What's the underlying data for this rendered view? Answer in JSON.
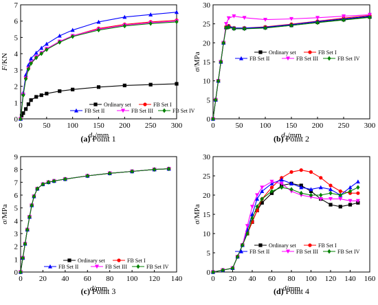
{
  "chart_data": [
    {
      "type": "line",
      "caption_letter": "(a)",
      "caption_text": "Point 1",
      "ylabel_main": "F",
      "ylabel_unit": "/KN",
      "xlabel_main": "d",
      "xlabel_sub": "2",
      "xlabel_unit": "/mm",
      "xlim": [
        0,
        300
      ],
      "ylim": [
        0,
        7
      ],
      "xticks": [
        "0",
        "50",
        "100",
        "150",
        "200",
        "250",
        "300"
      ],
      "yticks": [
        "0",
        "1",
        "2",
        "3",
        "4",
        "5",
        "6",
        "7"
      ],
      "legend_position": "top-left",
      "series": [
        {
          "name": "Ordinary set",
          "color": "#000000",
          "marker": "square",
          "x": [
            0,
            2,
            5,
            10,
            15,
            20,
            30,
            40,
            50,
            75,
            100,
            150,
            200,
            250,
            300
          ],
          "y": [
            0,
            0.2,
            0.35,
            0.6,
            0.9,
            1.15,
            1.35,
            1.45,
            1.55,
            1.7,
            1.8,
            1.95,
            2.05,
            2.1,
            2.15
          ]
        },
        {
          "name": "FB Set I",
          "color": "#ff0000",
          "marker": "circle",
          "x": [
            0,
            5,
            10,
            15,
            20,
            30,
            40,
            50,
            75,
            100,
            150,
            200,
            250,
            300
          ],
          "y": [
            0,
            1.5,
            2.5,
            3.1,
            3.45,
            3.8,
            4.05,
            4.3,
            4.75,
            5.1,
            5.55,
            5.8,
            5.95,
            6.05
          ]
        },
        {
          "name": "FB Set II",
          "color": "#0000ff",
          "marker": "triangle",
          "x": [
            0,
            5,
            10,
            15,
            20,
            30,
            40,
            50,
            75,
            100,
            150,
            200,
            250,
            300
          ],
          "y": [
            0,
            1.6,
            2.7,
            3.3,
            3.7,
            4.05,
            4.35,
            4.6,
            5.1,
            5.45,
            5.95,
            6.25,
            6.4,
            6.55
          ]
        },
        {
          "name": "FB Set III",
          "color": "#ff00ff",
          "marker": "triangle-down",
          "x": [
            0,
            5,
            10,
            15,
            20,
            30,
            40,
            50,
            75,
            100,
            150,
            200,
            250,
            300
          ],
          "y": [
            0,
            1.5,
            2.5,
            3.1,
            3.45,
            3.8,
            4.05,
            4.3,
            4.75,
            5.1,
            5.5,
            5.75,
            5.9,
            6.0
          ]
        },
        {
          "name": "FB Set IV",
          "color": "#008000",
          "marker": "diamond",
          "x": [
            0,
            5,
            10,
            15,
            20,
            30,
            40,
            50,
            75,
            100,
            150,
            200,
            250,
            300
          ],
          "y": [
            0,
            1.45,
            2.45,
            3.05,
            3.4,
            3.75,
            4.0,
            4.25,
            4.7,
            5.05,
            5.45,
            5.7,
            5.85,
            5.95
          ]
        }
      ]
    },
    {
      "type": "line",
      "caption_letter": "(b)",
      "caption_text": "Point 2",
      "ylabel_main": "σ",
      "ylabel_unit": "/MPa",
      "xlabel_main": "d",
      "xlabel_sub": "2",
      "xlabel_unit": "/mm",
      "xlim": [
        0,
        300
      ],
      "ylim": [
        0,
        30
      ],
      "xticks": [
        "0",
        "50",
        "100",
        "150",
        "200",
        "250",
        "300"
      ],
      "yticks": [
        "0",
        "5",
        "10",
        "15",
        "20",
        "25",
        "30"
      ],
      "legend_position": "center",
      "series": [
        {
          "name": "Ordinary set",
          "color": "#000000",
          "marker": "square",
          "x": [
            0,
            5,
            10,
            15,
            20,
            25,
            30,
            40,
            60,
            100,
            150,
            200,
            250,
            300
          ],
          "y": [
            0,
            5,
            10,
            15,
            20,
            24,
            24.2,
            23.8,
            23.8,
            24.0,
            24.6,
            25.4,
            26.1,
            26.8
          ]
        },
        {
          "name": "FB Set I",
          "color": "#ff0000",
          "marker": "circle",
          "x": [
            0,
            5,
            10,
            15,
            20,
            25,
            30,
            40,
            60,
            100,
            150,
            200,
            250,
            300
          ],
          "y": [
            0,
            5,
            10,
            15,
            20,
            24.2,
            24.5,
            23.9,
            23.9,
            24.2,
            24.9,
            25.7,
            26.5,
            27.2
          ]
        },
        {
          "name": "FB Set II",
          "color": "#0000ff",
          "marker": "triangle",
          "x": [
            0,
            5,
            10,
            15,
            20,
            25,
            30,
            40,
            60,
            100,
            150,
            200,
            250,
            300
          ],
          "y": [
            0,
            5,
            10,
            15,
            20,
            24.2,
            24.4,
            23.9,
            23.9,
            24.1,
            24.8,
            25.6,
            26.3,
            27.0
          ]
        },
        {
          "name": "FB Set III",
          "color": "#ff00ff",
          "marker": "triangle-down",
          "x": [
            0,
            5,
            10,
            15,
            20,
            25,
            30,
            40,
            60,
            100,
            150,
            200,
            250,
            300
          ],
          "y": [
            0,
            5,
            10,
            15,
            20,
            25,
            26.5,
            27.0,
            26.6,
            26.1,
            26.3,
            26.6,
            27.0,
            27.4
          ]
        },
        {
          "name": "FB Set IV",
          "color": "#008000",
          "marker": "diamond",
          "x": [
            0,
            5,
            10,
            15,
            20,
            25,
            30,
            40,
            60,
            100,
            150,
            200,
            250,
            300
          ],
          "y": [
            0,
            5,
            10,
            15,
            20,
            24.0,
            24.1,
            23.7,
            23.7,
            23.9,
            24.6,
            25.3,
            26.0,
            26.7
          ]
        }
      ]
    },
    {
      "type": "line",
      "caption_letter": "(c)",
      "caption_text": "Point 3",
      "ylabel_main": "σ",
      "ylabel_unit": "/MPa",
      "xlabel_main": "d",
      "xlabel_sub": "",
      "xlabel_unit": "/mm",
      "xlim": [
        0,
        140
      ],
      "ylim": [
        0,
        9
      ],
      "xticks": [
        "0",
        "20",
        "40",
        "60",
        "80",
        "100",
        "120",
        "140"
      ],
      "yticks": [
        "0",
        "1",
        "2",
        "3",
        "4",
        "5",
        "6",
        "7",
        "8",
        "9"
      ],
      "legend_position": "lower-center",
      "series": [
        {
          "name": "Ordinary set",
          "color": "#000000",
          "marker": "square",
          "x": [
            0,
            2,
            4,
            6,
            8,
            10,
            12,
            15,
            20,
            25,
            30,
            40,
            60,
            80,
            100,
            120,
            133
          ],
          "y": [
            0,
            1.1,
            2.2,
            3.3,
            4.3,
            5.2,
            5.9,
            6.5,
            6.85,
            7.0,
            7.1,
            7.25,
            7.5,
            7.7,
            7.85,
            8.0,
            8.05
          ]
        },
        {
          "name": "FB Set I",
          "color": "#ff0000",
          "marker": "circle",
          "x": [
            0,
            2,
            4,
            6,
            8,
            10,
            12,
            15,
            20,
            25,
            30,
            40,
            60,
            80,
            100,
            120,
            133
          ],
          "y": [
            0,
            1.1,
            2.2,
            3.3,
            4.3,
            5.2,
            5.9,
            6.5,
            6.85,
            7.0,
            7.1,
            7.25,
            7.5,
            7.7,
            7.85,
            8.0,
            8.05
          ]
        },
        {
          "name": "FB Set II",
          "color": "#0000ff",
          "marker": "triangle",
          "x": [
            0,
            2,
            4,
            6,
            8,
            10,
            12,
            15,
            20,
            25,
            30,
            40,
            60,
            80,
            100,
            120,
            133
          ],
          "y": [
            0,
            1.1,
            2.2,
            3.3,
            4.3,
            5.2,
            5.9,
            6.5,
            6.85,
            7.0,
            7.1,
            7.25,
            7.5,
            7.7,
            7.85,
            8.0,
            8.05
          ]
        },
        {
          "name": "FB Set III",
          "color": "#ff00ff",
          "marker": "triangle-down",
          "x": [
            0,
            2,
            4,
            6,
            8,
            10,
            12,
            15,
            20,
            25,
            30,
            40,
            60,
            80,
            100,
            120,
            133
          ],
          "y": [
            0,
            1.1,
            2.2,
            3.3,
            4.3,
            5.2,
            5.9,
            6.5,
            6.85,
            7.0,
            7.1,
            7.25,
            7.5,
            7.7,
            7.85,
            8.0,
            8.05
          ]
        },
        {
          "name": "FB Set IV",
          "color": "#008000",
          "marker": "diamond",
          "x": [
            0,
            2,
            4,
            6,
            8,
            10,
            12,
            15,
            20,
            25,
            30,
            40,
            60,
            80,
            100,
            120,
            133
          ],
          "y": [
            0,
            1.1,
            2.2,
            3.3,
            4.3,
            5.2,
            5.9,
            6.5,
            6.85,
            7.0,
            7.1,
            7.25,
            7.5,
            7.7,
            7.85,
            8.0,
            8.05
          ]
        }
      ]
    },
    {
      "type": "line",
      "caption_letter": "(d)",
      "caption_text": "Point 4",
      "ylabel_main": "σ",
      "ylabel_unit": "/MPa",
      "xlabel_main": "d",
      "xlabel_sub": "",
      "xlabel_unit": "/mm",
      "xlim": [
        0,
        160
      ],
      "ylim": [
        0,
        30
      ],
      "xticks": [
        "0",
        "20",
        "40",
        "60",
        "80",
        "100",
        "120",
        "140",
        "160"
      ],
      "yticks": [
        "0",
        "5",
        "10",
        "15",
        "20",
        "25",
        "30"
      ],
      "legend_position": "bottom-center",
      "series": [
        {
          "name": "Ordinary set",
          "color": "#000000",
          "marker": "square",
          "x": [
            0,
            10,
            20,
            25,
            30,
            35,
            40,
            45,
            50,
            60,
            70,
            80,
            90,
            100,
            110,
            120,
            130,
            140,
            148
          ],
          "y": [
            0,
            0.5,
            1,
            4,
            7,
            10,
            13,
            16,
            18,
            20.5,
            22.5,
            23,
            22.5,
            21,
            19,
            17.5,
            17,
            17.5,
            18
          ]
        },
        {
          "name": "FB Set I",
          "color": "#ff0000",
          "marker": "circle",
          "x": [
            0,
            10,
            20,
            25,
            30,
            35,
            40,
            45,
            50,
            60,
            70,
            80,
            90,
            100,
            110,
            120,
            130,
            140,
            148
          ],
          "y": [
            0,
            0.5,
            1,
            4,
            7,
            10,
            13,
            16,
            19,
            22,
            24.5,
            26,
            26.5,
            26,
            24.5,
            22.5,
            21,
            20.5,
            20.5
          ]
        },
        {
          "name": "FB Set II",
          "color": "#0000ff",
          "marker": "triangle",
          "x": [
            0,
            10,
            20,
            25,
            30,
            35,
            40,
            45,
            50,
            60,
            70,
            80,
            90,
            100,
            110,
            120,
            130,
            140,
            148
          ],
          "y": [
            0,
            0.5,
            1,
            4,
            7,
            11,
            15,
            19,
            21,
            23,
            24,
            23,
            22,
            21.5,
            22,
            21.5,
            20,
            22,
            23.5
          ]
        },
        {
          "name": "FB Set III",
          "color": "#ff00ff",
          "marker": "triangle-down",
          "x": [
            0,
            10,
            20,
            25,
            30,
            35,
            40,
            45,
            50,
            60,
            70,
            80,
            90,
            100,
            110,
            120,
            130,
            140,
            148
          ],
          "y": [
            0,
            0.5,
            1,
            4,
            7,
            12,
            17,
            20,
            22,
            23.5,
            23,
            21,
            20,
            19.5,
            19,
            19,
            19,
            18.5,
            18.5
          ]
        },
        {
          "name": "FB Set IV",
          "color": "#008000",
          "marker": "diamond",
          "x": [
            0,
            10,
            20,
            25,
            30,
            35,
            40,
            45,
            50,
            60,
            70,
            80,
            90,
            100,
            110,
            120,
            130,
            140,
            148
          ],
          "y": [
            0,
            0.5,
            1,
            4,
            7,
            10,
            14,
            17,
            19,
            21,
            22,
            21.5,
            20.5,
            20,
            20,
            20.5,
            20,
            21,
            22
          ]
        }
      ]
    }
  ]
}
